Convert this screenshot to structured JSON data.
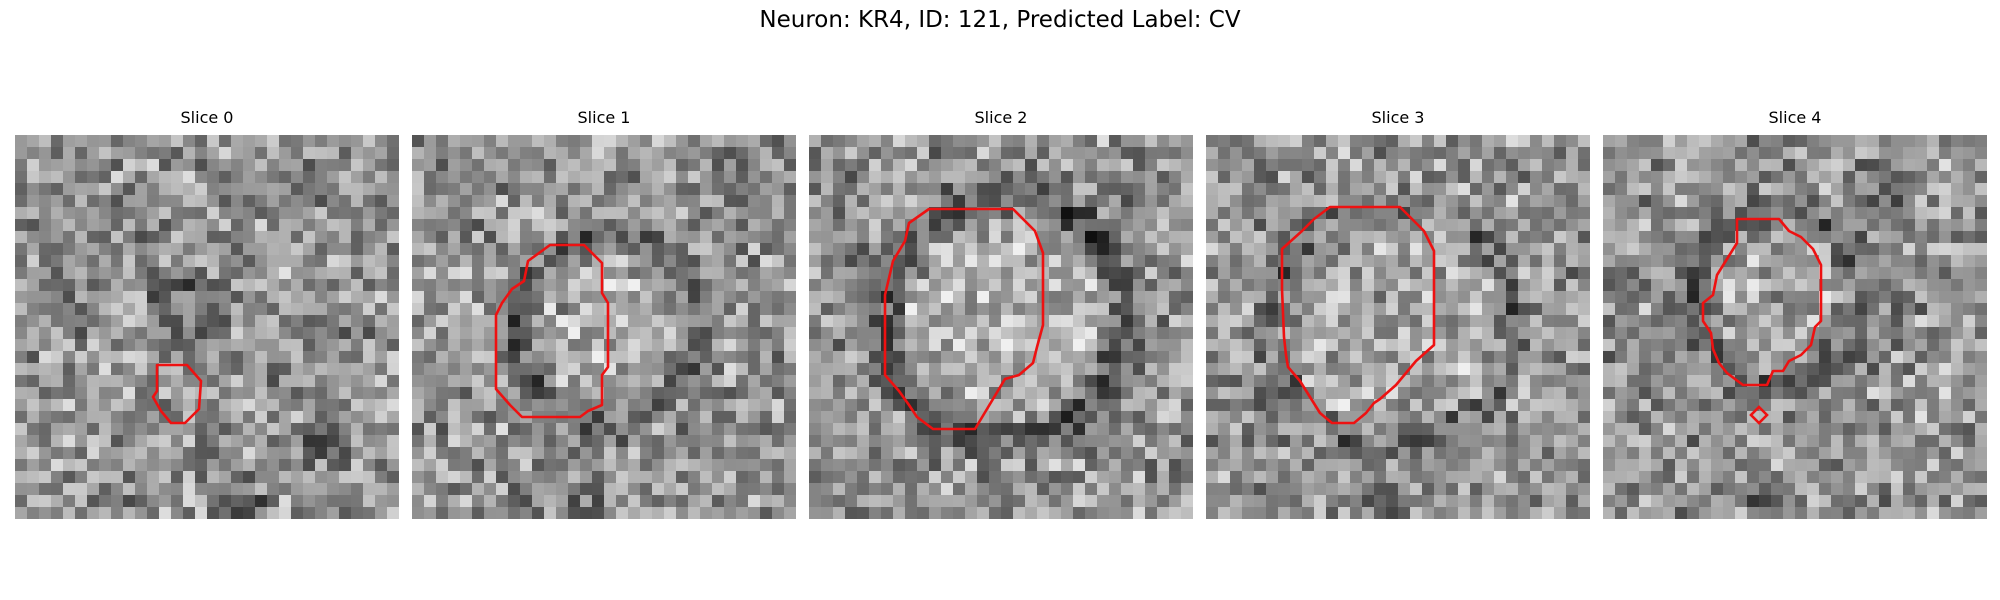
{
  "figure": {
    "title": "Neuron: KR4, ID: 121, Predicted Label: CV"
  },
  "panels": [
    {
      "title": "Slice 0"
    },
    {
      "title": "Slice 1"
    },
    {
      "title": "Slice 2"
    },
    {
      "title": "Slice 3"
    },
    {
      "title": "Slice 4"
    }
  ],
  "colors": {
    "contour": "#ee1111",
    "background": "#ffffff"
  }
}
